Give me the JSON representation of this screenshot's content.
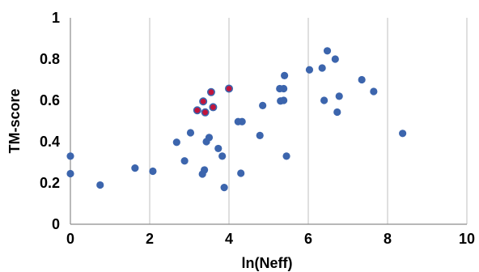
{
  "chart_data": {
    "type": "scatter",
    "title": "",
    "xlabel": "ln(Neff)",
    "ylabel": "TM-score",
    "xlim": [
      0,
      10
    ],
    "ylim": [
      0,
      1
    ],
    "x_ticks": [
      "0",
      "2",
      "4",
      "6",
      "8",
      "10"
    ],
    "y_ticks": [
      "0",
      "0.2",
      "0.4",
      "0.6",
      "0.8",
      "1"
    ],
    "grid": "vertical",
    "colors": {
      "series_fill": "#3c65ad",
      "highlight_fill": "#c0143c",
      "highlight_stroke": "#3c65ad",
      "grid": "#bfbfbf"
    },
    "series": [
      {
        "points": [
          [
            0.0,
            0.33
          ],
          [
            0.0,
            0.245
          ],
          [
            0.75,
            0.19
          ],
          [
            1.63,
            0.272
          ],
          [
            2.08,
            0.257
          ],
          [
            2.68,
            0.397
          ],
          [
            2.88,
            0.307
          ],
          [
            3.03,
            0.443
          ],
          [
            3.33,
            0.243
          ],
          [
            3.38,
            0.263
          ],
          [
            3.43,
            0.4
          ],
          [
            3.5,
            0.42
          ],
          [
            3.73,
            0.367
          ],
          [
            3.83,
            0.33
          ],
          [
            3.88,
            0.178
          ],
          [
            4.0,
            0.657
          ],
          [
            4.23,
            0.497
          ],
          [
            4.33,
            0.497
          ],
          [
            4.3,
            0.247
          ],
          [
            4.78,
            0.43
          ],
          [
            4.85,
            0.575
          ],
          [
            5.28,
            0.657
          ],
          [
            5.3,
            0.597
          ],
          [
            5.38,
            0.6
          ],
          [
            5.38,
            0.657
          ],
          [
            5.4,
            0.72
          ],
          [
            5.45,
            0.33
          ],
          [
            6.03,
            0.748
          ],
          [
            6.35,
            0.757
          ],
          [
            6.4,
            0.6
          ],
          [
            6.48,
            0.84
          ],
          [
            6.68,
            0.8
          ],
          [
            6.73,
            0.543
          ],
          [
            6.78,
            0.62
          ],
          [
            7.35,
            0.7
          ],
          [
            7.65,
            0.643
          ],
          [
            8.38,
            0.44
          ]
        ]
      },
      {
        "points": [
          [
            3.2,
            0.552
          ],
          [
            3.35,
            0.595
          ],
          [
            3.4,
            0.542
          ],
          [
            3.55,
            0.64
          ],
          [
            3.6,
            0.567
          ],
          [
            4.0,
            0.657
          ]
        ]
      }
    ]
  }
}
